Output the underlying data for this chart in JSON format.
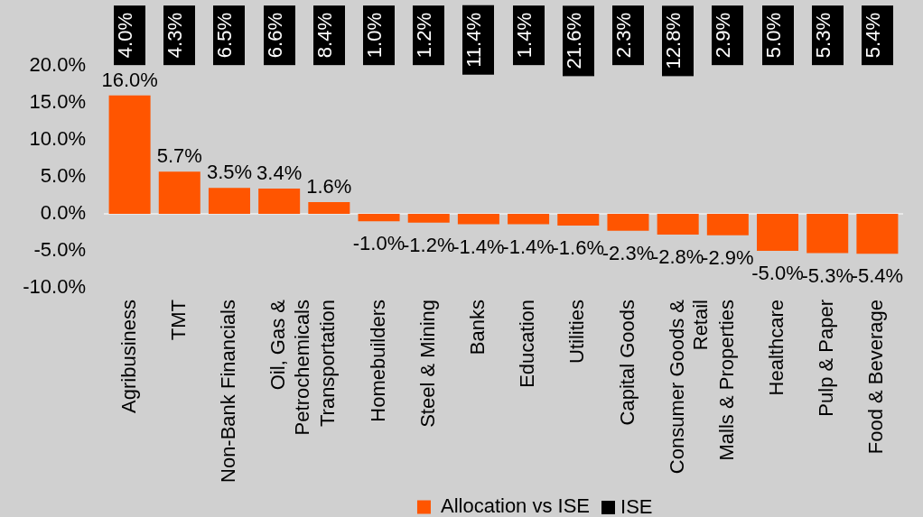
{
  "chart_data": [
    {
      "type": "other",
      "series": [
        {
          "name": "ISE",
          "color": "#000000",
          "values": [
            4.0,
            4.3,
            6.5,
            6.6,
            8.4,
            1.0,
            1.2,
            11.4,
            1.4,
            21.6,
            2.3,
            12.8,
            2.9,
            5.0,
            5.3,
            5.4
          ],
          "value_labels": [
            "4.0%",
            "4.3%",
            "6.5%",
            "6.6%",
            "8.4%",
            "1.0%",
            "1.2%",
            "11.4%",
            "1.4%",
            "21.6%",
            "2.3%",
            "12.8%",
            "2.9%",
            "5.0%",
            "5.3%",
            "5.4%"
          ]
        }
      ],
      "legend": "bottom"
    },
    {
      "type": "bar",
      "categories": [
        "Agribusiness",
        "TMT",
        "Non-Bank Financials",
        "Oil, Gas & Petrochemicals",
        "Transportation",
        "Homebuilders",
        "Steel & Mining",
        "Banks",
        "Education",
        "Utilities",
        "Capital Goods",
        "Consumer Goods & Retail",
        "Malls & Properties",
        "Healthcare",
        "Pulp & Paper",
        "Food & Beverage"
      ],
      "series": [
        {
          "name": "Allocation vs ISE",
          "color": "#ff5500",
          "values": [
            16.0,
            5.7,
            3.5,
            3.4,
            1.6,
            -1.0,
            -1.2,
            -1.4,
            -1.4,
            -1.6,
            -2.3,
            -2.8,
            -2.9,
            -5.0,
            -5.3,
            -5.4
          ],
          "value_labels": [
            "16.0%",
            "5.7%",
            "3.5%",
            "3.4%",
            "1.6%",
            "-1.0%",
            "-1.2%",
            "-1.4%",
            "-1.4%",
            "-1.6%",
            "-2.3%",
            "-2.8%",
            "-2.9%",
            "-5.0%",
            "-5.3%",
            "-5.4%"
          ]
        }
      ],
      "ylim": [
        -10,
        20
      ],
      "yticks": [
        {
          "value": -10,
          "label": "-10.0%"
        },
        {
          "value": -5,
          "label": "-5.0%"
        },
        {
          "value": 0,
          "label": "0.0%"
        },
        {
          "value": 5,
          "label": "5.0%"
        },
        {
          "value": 10,
          "label": "10.0%"
        },
        {
          "value": 15,
          "label": "15.0%"
        },
        {
          "value": 20,
          "label": "20.0%"
        }
      ],
      "legend": "bottom"
    }
  ]
}
